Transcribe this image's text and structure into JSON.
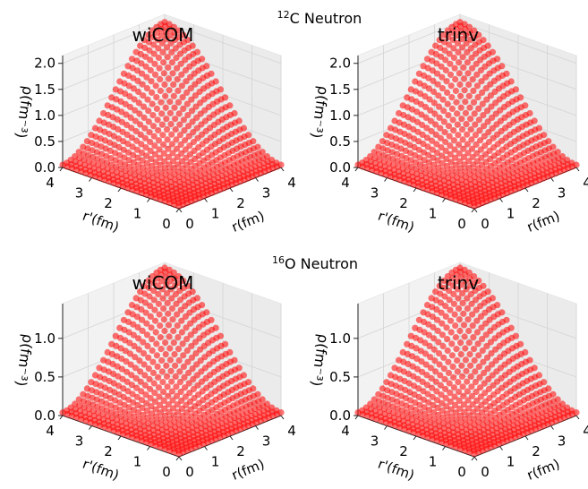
{
  "figure": {
    "rows": [
      {
        "suptitle": {
          "sup": "12",
          "text": "C Neutron"
        }
      },
      {
        "suptitle": {
          "sup": "16",
          "text": "O Neutron"
        }
      }
    ]
  },
  "chart_data": [
    {
      "type": "scatter3d",
      "title": "wiCOM",
      "xlabel": "r'(fm)",
      "ylabel": "r(fm)",
      "zlabel": "ρ(fm⁻³)",
      "xticks": [
        "0",
        "1",
        "2",
        "3",
        "4"
      ],
      "yticks": [
        "0",
        "1",
        "2",
        "3",
        "4"
      ],
      "zticks": [
        "0.0",
        "0.5",
        "1.0",
        "1.5",
        "2.0"
      ],
      "xlim": [
        0,
        4
      ],
      "ylim": [
        0,
        4
      ],
      "zlim": [
        0,
        2.15
      ],
      "grid": true,
      "color": "#ff0000",
      "surface": {
        "peak_value": 2.0,
        "peak_at": {
          "r_prime": 4,
          "r": 4
        },
        "floor_value": 0.05,
        "grid_points": 26
      }
    },
    {
      "type": "scatter3d",
      "title": "trinv",
      "xlabel": "r'(fm)",
      "ylabel": "r(fm)",
      "zlabel": "ρ(fm⁻³)",
      "xticks": [
        "0",
        "1",
        "2",
        "3",
        "4"
      ],
      "yticks": [
        "0",
        "1",
        "2",
        "3",
        "4"
      ],
      "zticks": [
        "0.0",
        "0.5",
        "1.0",
        "1.5",
        "2.0"
      ],
      "xlim": [
        0,
        4
      ],
      "ylim": [
        0,
        4
      ],
      "zlim": [
        0,
        2.15
      ],
      "grid": true,
      "color": "#ff0000",
      "surface": {
        "peak_value": 2.0,
        "peak_at": {
          "r_prime": 4,
          "r": 4
        },
        "floor_value": 0.05,
        "grid_points": 26
      }
    },
    {
      "type": "scatter3d",
      "title": "wiCOM",
      "xlabel": "r'(fm)",
      "ylabel": "r(fm)",
      "zlabel": "ρ(fm⁻³)",
      "xticks": [
        "0",
        "1",
        "2",
        "3",
        "4"
      ],
      "yticks": [
        "0",
        "1",
        "2",
        "3",
        "4"
      ],
      "zticks": [
        "0.0",
        "0.5",
        "1.0"
      ],
      "xlim": [
        0,
        4
      ],
      "ylim": [
        0,
        4
      ],
      "zlim": [
        0,
        1.45
      ],
      "grid": true,
      "color": "#ff0000",
      "surface": {
        "peak_value": 1.38,
        "peak_at": {
          "r_prime": 4,
          "r": 4
        },
        "floor_value": 0.04,
        "grid_points": 26
      }
    },
    {
      "type": "scatter3d",
      "title": "trinv",
      "xlabel": "r'(fm)",
      "ylabel": "r(fm)",
      "zlabel": "ρ(fm⁻³)",
      "xticks": [
        "0",
        "1",
        "2",
        "3",
        "4"
      ],
      "yticks": [
        "0",
        "1",
        "2",
        "3",
        "4"
      ],
      "zticks": [
        "0.0",
        "0.5",
        "1.0"
      ],
      "xlim": [
        0,
        4
      ],
      "ylim": [
        0,
        4
      ],
      "zlim": [
        0,
        1.45
      ],
      "grid": true,
      "color": "#ff0000",
      "surface": {
        "peak_value": 1.38,
        "peak_at": {
          "r_prime": 4,
          "r": 4
        },
        "floor_value": 0.04,
        "grid_points": 26
      }
    }
  ]
}
